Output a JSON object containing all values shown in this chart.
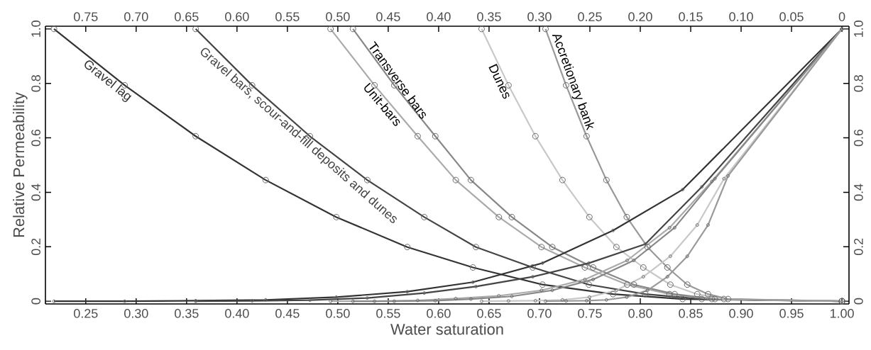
{
  "chart_data": {
    "type": "line",
    "xlabel": "Water saturation",
    "ylabel": "Relative Permeability",
    "marker": "circle",
    "xlim": [
      0.21,
      1.007
    ],
    "ylim": [
      -0.01,
      1.01
    ],
    "x2lim": [
      0.79,
      -0.007
    ],
    "y2lim": [
      -0.01,
      1.01
    ],
    "xticks": [
      0.25,
      {
        "value": 0.3,
        "label": "0.30"
      },
      0.35,
      {
        "value": 0.4,
        "label": "0.40"
      },
      0.45,
      {
        "value": 0.5,
        "label": "0.50"
      },
      0.55,
      {
        "value": 0.6,
        "label": "0.60"
      },
      0.65,
      {
        "value": 0.7,
        "label": "0.70"
      },
      0.75,
      {
        "value": 0.8,
        "label": "0.80"
      },
      0.85,
      {
        "value": 0.9,
        "label": "0.90"
      },
      0.95,
      {
        "value": 1,
        "label": "1.00"
      }
    ],
    "x2ticks": [
      0.75,
      {
        "value": 0.7,
        "label": "0.70"
      },
      0.65,
      {
        "value": 0.6,
        "label": "0.60"
      },
      0.55,
      {
        "value": 0.5,
        "label": "0.50"
      },
      0.45,
      {
        "value": 0.4,
        "label": "0.40"
      },
      0.35,
      {
        "value": 0.3,
        "label": "0.30"
      },
      0.25,
      {
        "value": 0.2,
        "label": "0.20"
      },
      0.15,
      {
        "value": 0.1,
        "label": "0.10"
      },
      0.05,
      0
    ],
    "yticks": [
      0,
      0.2,
      0.4,
      0.6,
      0.8,
      {
        "value": 1,
        "label": "1.0"
      }
    ],
    "y2ticks": [
      0,
      0.2,
      0.4,
      0.6,
      0.8,
      {
        "value": 1,
        "label": "1.0"
      }
    ],
    "series": [
      {
        "name": "Gravel lag",
        "color": "#333333",
        "x": [
          0.2185,
          0.2886,
          0.359,
          0.4284,
          0.4985,
          0.5689,
          0.634,
          0.703,
          0.773,
          0.842,
          1.0
        ],
        "values": [
          1.0,
          0.793,
          0.606,
          0.445,
          0.309,
          0.199,
          0.124,
          0.061,
          0.026,
          0.008,
          0
        ]
      },
      {
        "name": "Gravel bars, scour-and-fill deposits and dunes",
        "color": "#444444",
        "x": [
          0.359,
          0.415,
          0.4723,
          0.5292,
          0.5857,
          0.637,
          0.6933,
          0.749,
          0.805,
          0.861,
          1.0
        ],
        "values": [
          1.0,
          0.793,
          0.606,
          0.445,
          0.309,
          0.199,
          0.124,
          0.061,
          0.026,
          0.008,
          0
        ]
      },
      {
        "name": "Unit-bars",
        "color": "#aaaaaa",
        "x": [
          0.4928,
          0.5364,
          0.5792,
          0.617,
          0.6597,
          0.702,
          0.745,
          0.787,
          0.829,
          0.871,
          1.0
        ],
        "values": [
          1.0,
          0.793,
          0.606,
          0.445,
          0.309,
          0.199,
          0.124,
          0.061,
          0.026,
          0.008,
          0
        ]
      },
      {
        "name": "Transverse bars",
        "color": "#888888",
        "x": [
          0.515,
          0.556,
          0.5967,
          0.632,
          0.6726,
          0.7127,
          0.7532,
          0.7936,
          0.834,
          0.874,
          1.0
        ],
        "values": [
          1.0,
          0.793,
          0.606,
          0.445,
          0.309,
          0.199,
          0.124,
          0.061,
          0.026,
          0.008,
          0
        ]
      },
      {
        "name": "Dunes",
        "color": "#c8c8c8",
        "x": [
          0.6426,
          0.6693,
          0.696,
          0.7228,
          0.7495,
          0.7763,
          0.803,
          0.8298,
          0.8565,
          0.883,
          1.0
        ],
        "values": [
          1.0,
          0.793,
          0.606,
          0.445,
          0.309,
          0.199,
          0.124,
          0.061,
          0.026,
          0.008,
          0
        ]
      },
      {
        "name": "Accretionary bank",
        "color": "#999999",
        "x": [
          0.706,
          0.7264,
          0.7467,
          0.7664,
          0.7866,
          0.8072,
          0.8269,
          0.8466,
          0.8672,
          0.887,
          1.0
        ],
        "values": [
          1.0,
          0.793,
          0.606,
          0.445,
          0.309,
          0.199,
          0.124,
          0.061,
          0.026,
          0.008,
          0
        ]
      },
      {
        "color": "#333333",
        "x": [
          0.2185,
          0.2886,
          0.359,
          0.4284,
          0.4985,
          0.5689,
          0.634,
          0.703,
          0.773,
          0.842,
          1.0
        ],
        "values": [
          0,
          0,
          0.002,
          0.005,
          0.015,
          0.035,
          0.07,
          0.14,
          0.26,
          0.41,
          1.0
        ]
      },
      {
        "color": "#444444",
        "x": [
          0.359,
          0.415,
          0.4723,
          0.5292,
          0.5857,
          0.637,
          0.6933,
          0.749,
          0.805,
          0.861,
          1.0
        ],
        "values": [
          0,
          0.001,
          0.004,
          0.012,
          0.03,
          0.054,
          0.09,
          0.14,
          0.21,
          0.42,
          1.0
        ]
      },
      {
        "color": "#aaaaaa",
        "x": [
          0.4928,
          0.5364,
          0.5792,
          0.617,
          0.6597,
          0.702,
          0.745,
          0.787,
          0.829,
          0.871,
          1.0
        ],
        "values": [
          0,
          0,
          0.003,
          0.01,
          0.02,
          0.04,
          0.08,
          0.15,
          0.27,
          0.44,
          1.0
        ]
      },
      {
        "color": "#888888",
        "x": [
          0.515,
          0.556,
          0.5967,
          0.632,
          0.6726,
          0.7127,
          0.7532,
          0.7936,
          0.834,
          0.874,
          1.0
        ],
        "values": [
          0,
          0,
          0.002,
          0.008,
          0.018,
          0.04,
          0.08,
          0.15,
          0.27,
          0.45,
          1.0
        ]
      },
      {
        "color": "#c8c8c8",
        "x": [
          0.6426,
          0.6693,
          0.696,
          0.7228,
          0.7495,
          0.7763,
          0.803,
          0.8298,
          0.8565,
          0.883,
          1.0
        ],
        "values": [
          0,
          0.001,
          0.002,
          0.005,
          0.015,
          0.04,
          0.09,
          0.165,
          0.28,
          0.45,
          1.0
        ]
      },
      {
        "color": "#999999",
        "x": [
          0.706,
          0.7264,
          0.7467,
          0.7664,
          0.7866,
          0.8072,
          0.8269,
          0.8466,
          0.8672,
          0.887,
          1.0
        ],
        "values": [
          0,
          0.001,
          0.002,
          0.005,
          0.015,
          0.04,
          0.09,
          0.165,
          0.28,
          0.46,
          1.0
        ]
      }
    ]
  }
}
